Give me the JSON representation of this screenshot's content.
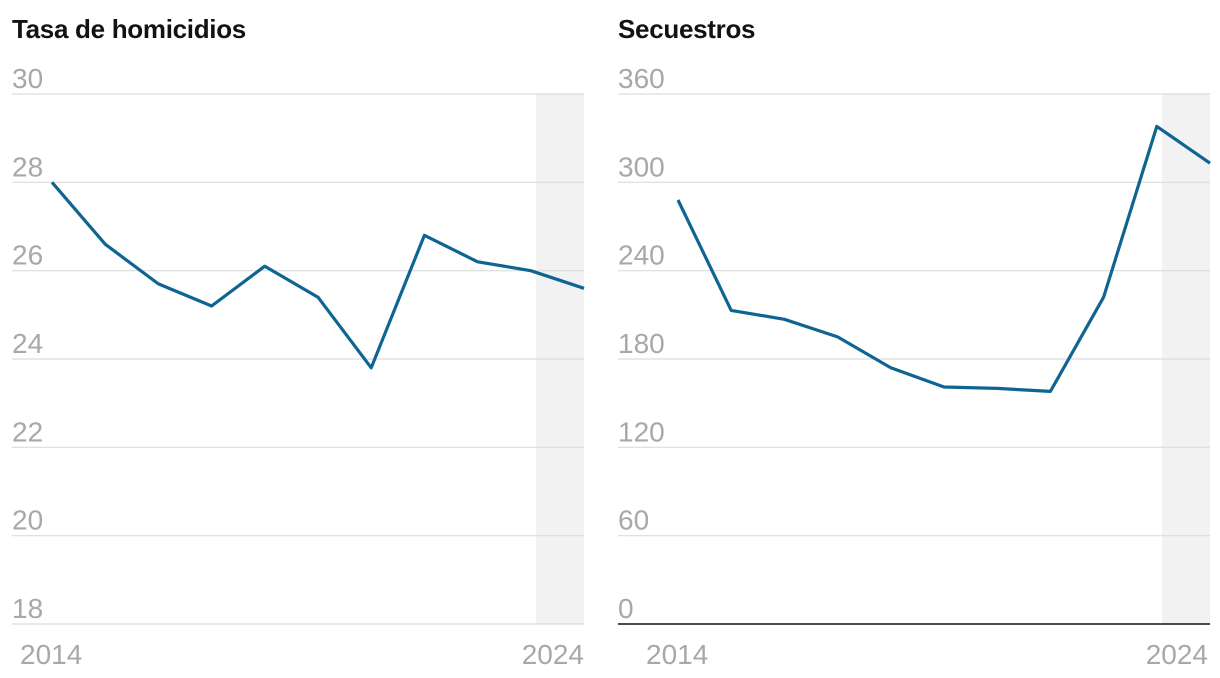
{
  "chart_data": [
    {
      "type": "line",
      "title": "Tasa de homicidios",
      "xlabel": "",
      "ylabel": "",
      "x": [
        2014,
        2015,
        2016,
        2017,
        2018,
        2019,
        2020,
        2021,
        2022,
        2023,
        2024
      ],
      "series": [
        {
          "values": [
            28.0,
            26.6,
            25.7,
            25.2,
            26.1,
            25.4,
            23.8,
            26.8,
            26.2,
            26.0,
            25.6
          ]
        }
      ],
      "ylim": [
        18,
        30
      ],
      "y_ticks": [
        30,
        28,
        26,
        24,
        22,
        20,
        18
      ],
      "x_ticks": [
        2014,
        2024
      ],
      "x_tick_labels": [
        "2014",
        "2024"
      ],
      "shaded_start": 2023.1,
      "baseline_dark": false,
      "grid": true,
      "line_color": "#0f6592",
      "shade_color": "#f2f2f2"
    },
    {
      "type": "line",
      "title": "Secuestros",
      "xlabel": "",
      "ylabel": "",
      "x": [
        2014,
        2015,
        2016,
        2017,
        2018,
        2019,
        2020,
        2021,
        2022,
        2023,
        2024
      ],
      "series": [
        {
          "values": [
            288,
            213,
            207,
            195,
            174,
            161,
            160,
            158,
            222,
            338,
            313
          ]
        }
      ],
      "ylim": [
        0,
        360
      ],
      "y_ticks": [
        360,
        300,
        240,
        180,
        120,
        60,
        0
      ],
      "x_ticks": [
        2014,
        2024
      ],
      "x_tick_labels": [
        "2014",
        "2024"
      ],
      "shaded_start": 2023.1,
      "baseline_dark": true,
      "grid": true,
      "line_color": "#0f6592",
      "shade_color": "#f2f2f2"
    }
  ]
}
